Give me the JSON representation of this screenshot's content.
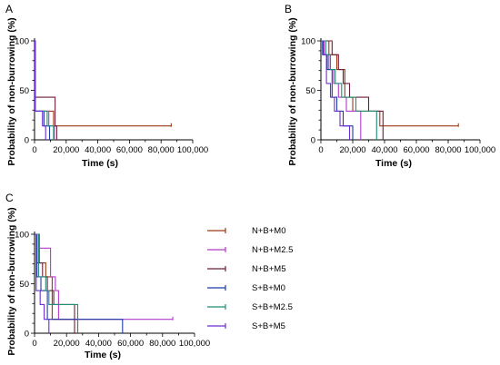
{
  "colors": {
    "N+B+M0": "#9B3A12",
    "N+B+M2.5": "#B43ACB",
    "N+B+M5": "#6D1F3A",
    "S+B+M0": "#1F3BA8",
    "S+B+M2.5": "#1E8E75",
    "S+B+M5": "#6A2FD2"
  },
  "legend": [
    "N+B+M0",
    "N+B+M2.5",
    "N+B+M5",
    "S+B+M0",
    "S+B+M2.5",
    "S+B+M5"
  ],
  "chart_data": [
    {
      "panel": "A",
      "type": "line",
      "xlabel": "Time (s)",
      "ylabel": "Probability of non-burrowing (%)",
      "xlim": [
        0,
        100000
      ],
      "ylim": [
        0,
        100
      ],
      "xticks": [
        "0",
        "20,000",
        "40,000",
        "60,000",
        "80,000",
        "100,000"
      ],
      "yticks": [
        "0",
        "50",
        "100"
      ],
      "grid": false,
      "series": [
        {
          "name": "N+B+M0",
          "x": [
            0,
            500,
            500,
            12000,
            12000,
            13000,
            13000,
            86400
          ],
          "y": [
            100,
            100,
            29,
            29,
            14,
            14,
            14,
            14
          ],
          "censored_end": true
        },
        {
          "name": "N+B+M2.5",
          "x": [
            0,
            300,
            300,
            9000,
            9000,
            12500,
            12500
          ],
          "y": [
            100,
            100,
            29,
            29,
            14,
            14,
            0
          ]
        },
        {
          "name": "N+B+M5",
          "x": [
            0,
            400,
            400,
            13000,
            13000,
            14000,
            14000
          ],
          "y": [
            100,
            100,
            43,
            43,
            14,
            14,
            0
          ]
        },
        {
          "name": "S+B+M0",
          "x": [
            0,
            300,
            300,
            6000,
            6000,
            9500,
            9500
          ],
          "y": [
            100,
            100,
            29,
            29,
            14,
            14,
            0
          ]
        },
        {
          "name": "S+B+M2.5",
          "x": [
            0,
            400,
            400,
            8000,
            8000,
            12000,
            12000
          ],
          "y": [
            100,
            100,
            29,
            29,
            14,
            14,
            0
          ]
        },
        {
          "name": "S+B+M5",
          "x": [
            0,
            300,
            300,
            5000,
            5000,
            7000,
            7000
          ],
          "y": [
            100,
            100,
            29,
            29,
            14,
            14,
            0
          ]
        }
      ]
    },
    {
      "panel": "B",
      "type": "line",
      "xlabel": "Time (s)",
      "ylabel": "Probability of non-burrowing (%)",
      "xlim": [
        0,
        100000
      ],
      "ylim": [
        0,
        100
      ],
      "xticks": [
        "0",
        "20,000",
        "40,000",
        "60,000",
        "80,000",
        "100,000"
      ],
      "yticks": [
        "0",
        "50",
        "100"
      ],
      "grid": false,
      "series": [
        {
          "name": "N+B+M0",
          "x": [
            0,
            5000,
            5000,
            10000,
            10000,
            15000,
            15000,
            20000,
            20000,
            37000,
            37000,
            86400
          ],
          "y": [
            100,
            100,
            86,
            86,
            71,
            71,
            43,
            43,
            29,
            29,
            14,
            14
          ],
          "censored_end": true
        },
        {
          "name": "N+B+M2.5",
          "x": [
            0,
            2000,
            2000,
            5000,
            5000,
            8000,
            8000,
            11000,
            11000,
            16000,
            16000,
            25000,
            25000
          ],
          "y": [
            100,
            100,
            86,
            86,
            71,
            71,
            57,
            57,
            43,
            43,
            29,
            29,
            0
          ]
        },
        {
          "name": "N+B+M5",
          "x": [
            0,
            7000,
            7000,
            11000,
            11000,
            14000,
            14000,
            18000,
            18000,
            30000,
            30000,
            39000,
            39000
          ],
          "y": [
            100,
            100,
            86,
            86,
            71,
            71,
            57,
            57,
            43,
            43,
            29,
            29,
            0
          ]
        },
        {
          "name": "S+B+M0",
          "x": [
            0,
            1000,
            1000,
            4000,
            4000,
            7000,
            7000,
            10000,
            10000,
            14000,
            14000,
            20000,
            20000
          ],
          "y": [
            100,
            100,
            86,
            86,
            71,
            71,
            43,
            43,
            29,
            29,
            14,
            14,
            0
          ]
        },
        {
          "name": "S+B+M2.5",
          "x": [
            0,
            3000,
            3000,
            6000,
            6000,
            9000,
            9000,
            13000,
            13000,
            22000,
            22000,
            35000,
            35000
          ],
          "y": [
            100,
            100,
            86,
            86,
            71,
            71,
            57,
            57,
            43,
            43,
            29,
            29,
            0
          ]
        },
        {
          "name": "S+B+M5",
          "x": [
            0,
            1500,
            1500,
            3500,
            3500,
            6000,
            6000,
            8500,
            8500,
            12000,
            12000,
            18000,
            18000
          ],
          "y": [
            100,
            100,
            86,
            86,
            57,
            57,
            43,
            43,
            29,
            29,
            14,
            14,
            0
          ]
        }
      ]
    },
    {
      "panel": "C",
      "type": "line",
      "xlabel": "Time (s)",
      "ylabel": "Probability of non-burrowing (%)",
      "xlim": [
        0,
        100000
      ],
      "ylim": [
        0,
        100
      ],
      "xticks": [
        "0",
        "20,000",
        "40,000",
        "60,000",
        "80,000",
        "100,000"
      ],
      "yticks": [
        "0",
        "50",
        "100"
      ],
      "grid": false,
      "series": [
        {
          "name": "N+B+M0",
          "x": [
            0,
            3000,
            3000,
            7000,
            7000,
            11000,
            11000,
            27000,
            27000
          ],
          "y": [
            100,
            100,
            71,
            71,
            57,
            57,
            14,
            14,
            0
          ]
        },
        {
          "name": "N+B+M2.5",
          "x": [
            0,
            3000,
            3000,
            10000,
            10000,
            13000,
            13000,
            15000,
            15000,
            86400
          ],
          "y": [
            100,
            100,
            86,
            86,
            57,
            57,
            43,
            43,
            14,
            14
          ],
          "censored_end": true
        },
        {
          "name": "N+B+M5",
          "x": [
            0,
            1500,
            1500,
            5000,
            5000,
            8000,
            8000,
            12000,
            12000,
            25000,
            25000
          ],
          "y": [
            100,
            100,
            71,
            71,
            57,
            57,
            43,
            43,
            29,
            29,
            0
          ]
        },
        {
          "name": "S+B+M0",
          "x": [
            0,
            1500,
            1500,
            4000,
            4000,
            8000,
            8000,
            55000,
            55000
          ],
          "y": [
            100,
            100,
            57,
            57,
            43,
            43,
            14,
            14,
            0
          ]
        },
        {
          "name": "S+B+M2.5",
          "x": [
            0,
            2500,
            2500,
            7000,
            7000,
            9000,
            9000,
            16000,
            16000,
            27000,
            27000
          ],
          "y": [
            100,
            100,
            57,
            57,
            43,
            43,
            29,
            29,
            29,
            29,
            0
          ]
        },
        {
          "name": "S+B+M5",
          "x": [
            0,
            1000,
            1000,
            3500,
            3500,
            6000,
            6000,
            9000,
            9000
          ],
          "y": [
            100,
            100,
            43,
            43,
            29,
            29,
            14,
            14,
            0
          ]
        }
      ]
    }
  ]
}
